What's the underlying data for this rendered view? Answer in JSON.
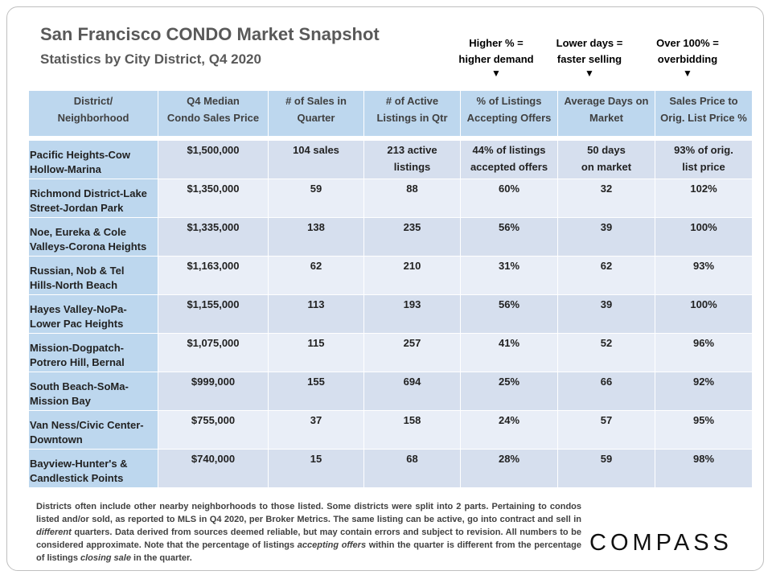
{
  "header": {
    "title": "San Francisco CONDO Market Snapshot",
    "subtitle": "Statistics by City District, Q4 2020"
  },
  "annotations": [
    "Higher % =\nhigher demand",
    "Lower days =\nfaster selling",
    "Over 100% =\noverbidding"
  ],
  "table": {
    "columns": [
      "District/\nNeighborhood",
      "Q4 Median\nCondo Sales Price",
      "# of Sales in\nQuarter",
      "# of Active\nListings in Qtr",
      "% of Listings\nAccepting Offers",
      "Average Days on\nMarket",
      "Sales Price to\nOrig. List Price %"
    ],
    "rows": [
      [
        "Pacific Heights-Cow\nHollow-Marina",
        "$1,500,000",
        "104 sales",
        "213 active\nlistings",
        "44% of listings\naccepted offers",
        "50 days\non market",
        "93% of orig.\nlist price"
      ],
      [
        "Richmond District-Lake\nStreet-Jordan Park",
        "$1,350,000",
        "59",
        "88",
        "60%",
        "32",
        "102%"
      ],
      [
        "Noe, Eureka & Cole\nValleys-Corona Heights",
        "$1,335,000",
        "138",
        "235",
        "56%",
        "39",
        "100%"
      ],
      [
        "Russian, Nob & Tel\nHills-North Beach",
        "$1,163,000",
        "62",
        "210",
        "31%",
        "62",
        "93%"
      ],
      [
        "Hayes Valley-NoPa-\nLower Pac Heights",
        "$1,155,000",
        "113",
        "193",
        "56%",
        "39",
        "100%"
      ],
      [
        "Mission-Dogpatch-\nPotrero Hill, Bernal",
        "$1,075,000",
        "115",
        "257",
        "41%",
        "52",
        "96%"
      ],
      [
        "South Beach-SoMa-\nMission Bay",
        "$999,000",
        "155",
        "694",
        "25%",
        "66",
        "92%"
      ],
      [
        "Van Ness/Civic Center-\nDowntown",
        "$755,000",
        "37",
        "158",
        "24%",
        "57",
        "95%"
      ],
      [
        "Bayview-Hunter's &\nCandlestick Points",
        "$740,000",
        "15",
        "68",
        "28%",
        "59",
        "98%"
      ]
    ]
  },
  "footnote": [
    "Districts often include other nearby neighborhoods to those listed. Some districts were split into 2 parts. Pertaining to condos listed and/or sold, as reported to MLS in Q4 2020, per Broker Metrics. The same listing can be active, go into contract and sell in ",
    "different",
    " quarters. Data derived from sources deemed reliable, but may contain errors and subject to revision. All numbers to be considered approximate. Note that the percentage of listings ",
    "accepting offers",
    " within the quarter is different from the percentage of listings ",
    "closing sale",
    " in the quarter."
  ],
  "logo": "COMPASS"
}
